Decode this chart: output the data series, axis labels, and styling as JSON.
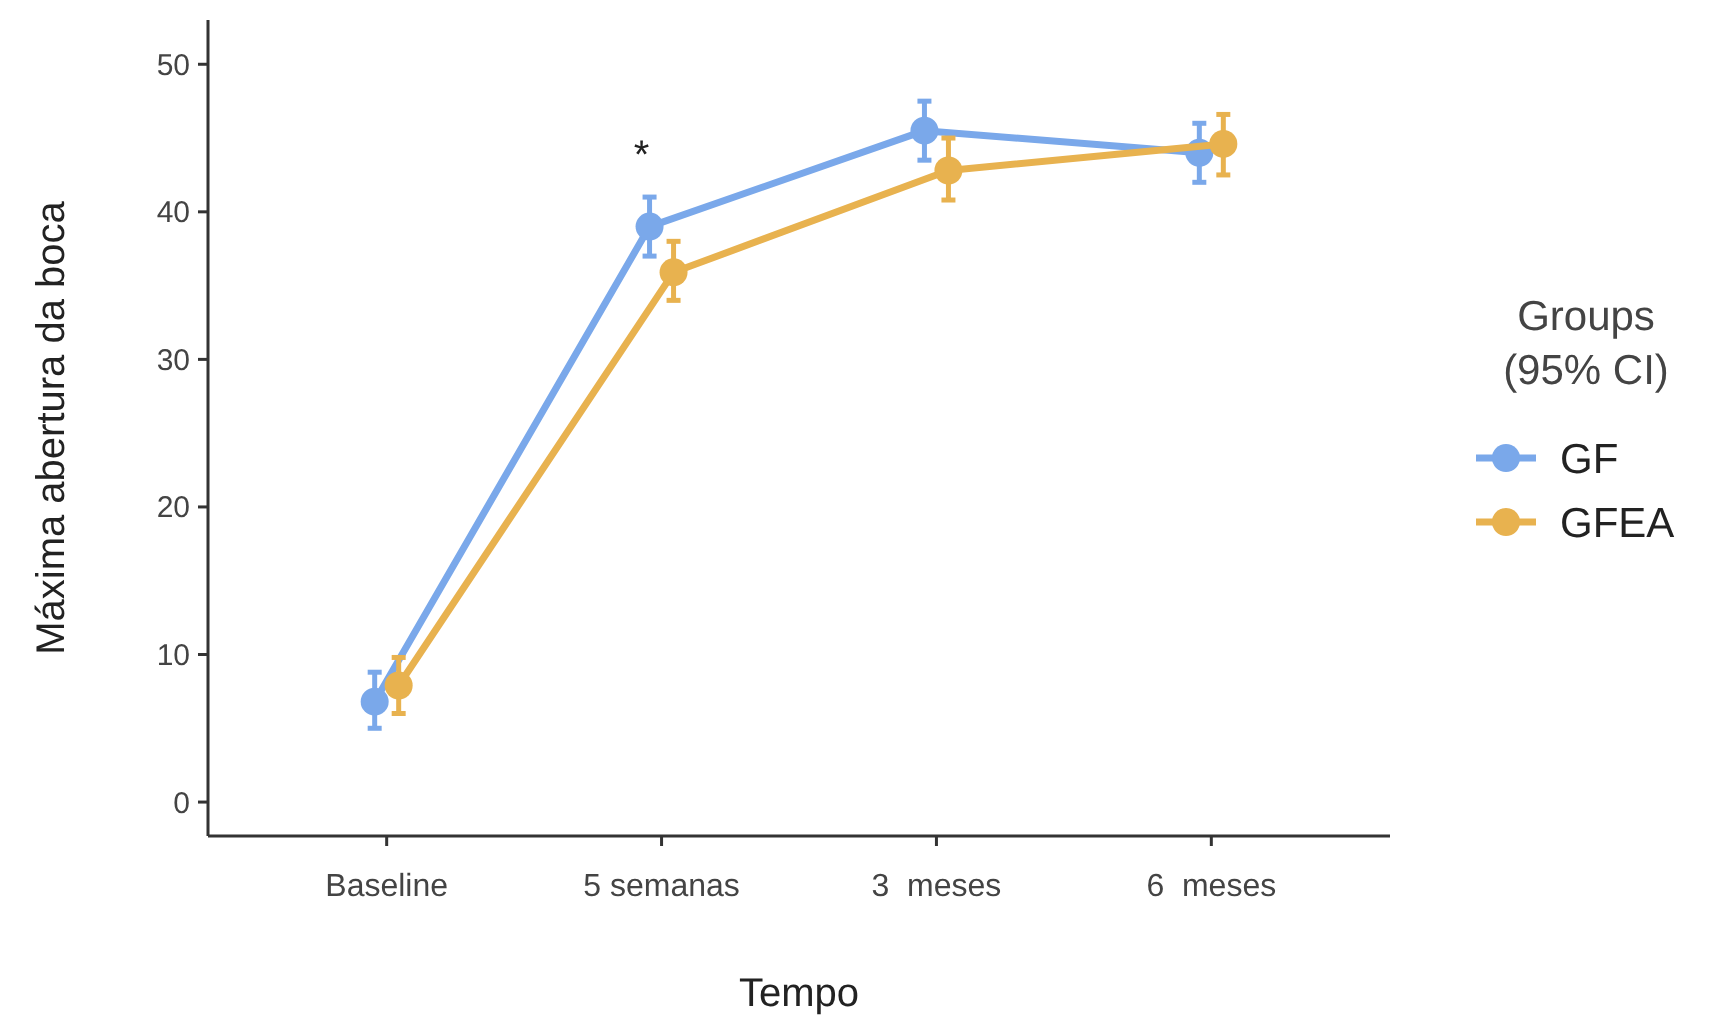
{
  "chart_data": {
    "type": "line",
    "xlabel": "Tempo",
    "ylabel": "Máxima abertura da boca",
    "legend_title": "Groups\n(95% CI)",
    "legend": "right",
    "marker": "circle",
    "grid": false,
    "categories": [
      "Baseline",
      "5 semanas",
      "3  meses",
      "6  meses"
    ],
    "ylim": [
      -2.3,
      53
    ],
    "yticks": [
      0,
      10,
      20,
      30,
      40,
      50
    ],
    "series": [
      {
        "name": "GF",
        "color": "#7aa8ea",
        "values": [
          6.8,
          39.0,
          45.5,
          44.0
        ],
        "errors": [
          [
            5.0,
            8.8
          ],
          [
            37.0,
            41.0
          ],
          [
            43.5,
            47.5
          ],
          [
            42.0,
            46.0
          ]
        ]
      },
      {
        "name": "GFEA",
        "color": "#e8b24f",
        "values": [
          7.9,
          35.9,
          42.8,
          44.6
        ],
        "errors": [
          [
            6.0,
            9.8
          ],
          [
            34.0,
            38.0
          ],
          [
            40.8,
            45.0
          ],
          [
            42.5,
            46.6
          ]
        ]
      }
    ],
    "annotations": [
      "*"
    ]
  }
}
